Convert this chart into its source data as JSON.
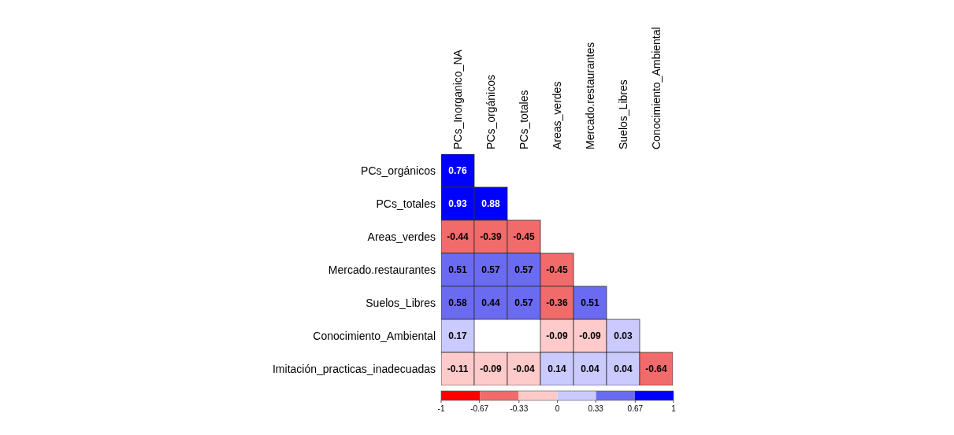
{
  "chart_data": {
    "type": "heatmap",
    "categories": [
      "PCs_Inorganico_NA",
      "PCs_orgánicos",
      "PCs_totales",
      "Areas_verdes",
      "Mercado.restaurantes",
      "Suelos_Libres",
      "Conocimiento_Ambiental"
    ],
    "y_categories": [
      "PCs_orgánicos",
      "PCs_totales",
      "Areas_verdes",
      "Mercado.restaurantes",
      "Suelos_Libres",
      "Conocimiento_Ambiental",
      "Imitación_practicas_inadecuadas"
    ],
    "cells": [
      [
        0.76,
        null,
        null,
        null,
        null,
        null,
        null
      ],
      [
        0.93,
        0.88,
        null,
        null,
        null,
        null,
        null
      ],
      [
        -0.44,
        -0.39,
        -0.45,
        null,
        null,
        null,
        null
      ],
      [
        0.51,
        0.57,
        0.57,
        -0.45,
        null,
        null,
        null
      ],
      [
        0.58,
        0.44,
        0.57,
        -0.36,
        0.51,
        null,
        null
      ],
      [
        0.17,
        null,
        null,
        -0.09,
        -0.09,
        0.03,
        null
      ],
      [
        -0.11,
        -0.09,
        -0.04,
        0.14,
        0.04,
        0.04,
        -0.64
      ]
    ],
    "data_labels": true,
    "clim": [
      -1,
      1
    ],
    "cticks": [
      -1,
      -0.67,
      -0.33,
      0,
      0.33,
      0.67,
      1
    ],
    "colors": [
      "#ff0000",
      "#f26b6b",
      "#ffcaca",
      "#cacaff",
      "#6b6bf2",
      "#0000ff"
    ]
  }
}
